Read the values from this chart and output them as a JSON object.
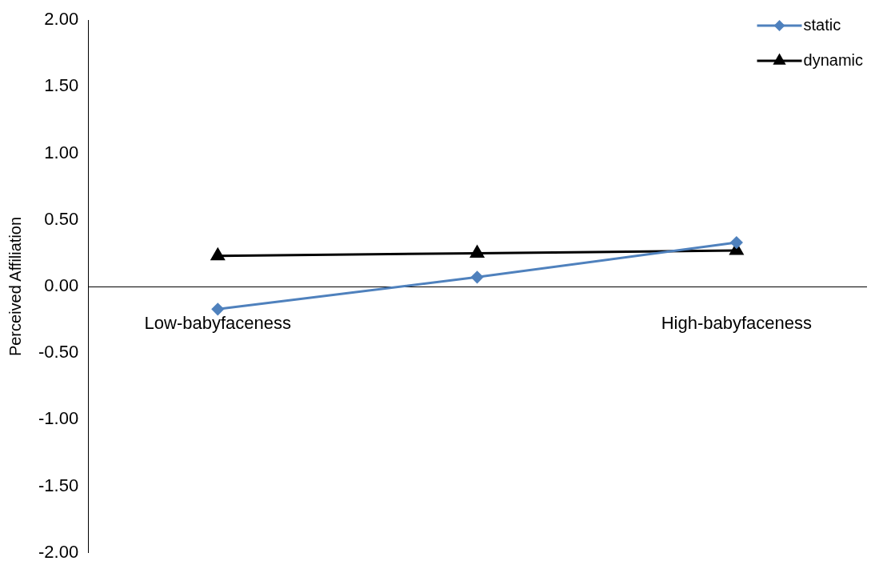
{
  "chart_data": {
    "type": "line",
    "ylabel": "Perceived Affiliation",
    "categories": [
      "Low-babyfaceness",
      null,
      "High-babyfaceness"
    ],
    "series": [
      {
        "name": "static",
        "color": "#4f81bd",
        "marker": "diamond",
        "values": [
          -0.17,
          0.07,
          0.33
        ]
      },
      {
        "name": "dynamic",
        "color": "#000000",
        "marker": "triangle",
        "values": [
          0.23,
          0.25,
          0.27
        ]
      }
    ],
    "ylim": [
      -2,
      2
    ],
    "yticks": [
      {
        "value": -2,
        "label": "-2.00"
      },
      {
        "value": -1.5,
        "label": "-1.50"
      },
      {
        "value": -1,
        "label": "-1.00"
      },
      {
        "value": -0.5,
        "label": "-0.50"
      },
      {
        "value": 0,
        "label": "0.00"
      },
      {
        "value": 0.5,
        "label": "0.50"
      },
      {
        "value": 1,
        "label": "1.00"
      },
      {
        "value": 1.5,
        "label": "1.50"
      },
      {
        "value": 2,
        "label": "2.00"
      }
    ],
    "grid": false,
    "legend": "top right",
    "line_style": "solid"
  }
}
